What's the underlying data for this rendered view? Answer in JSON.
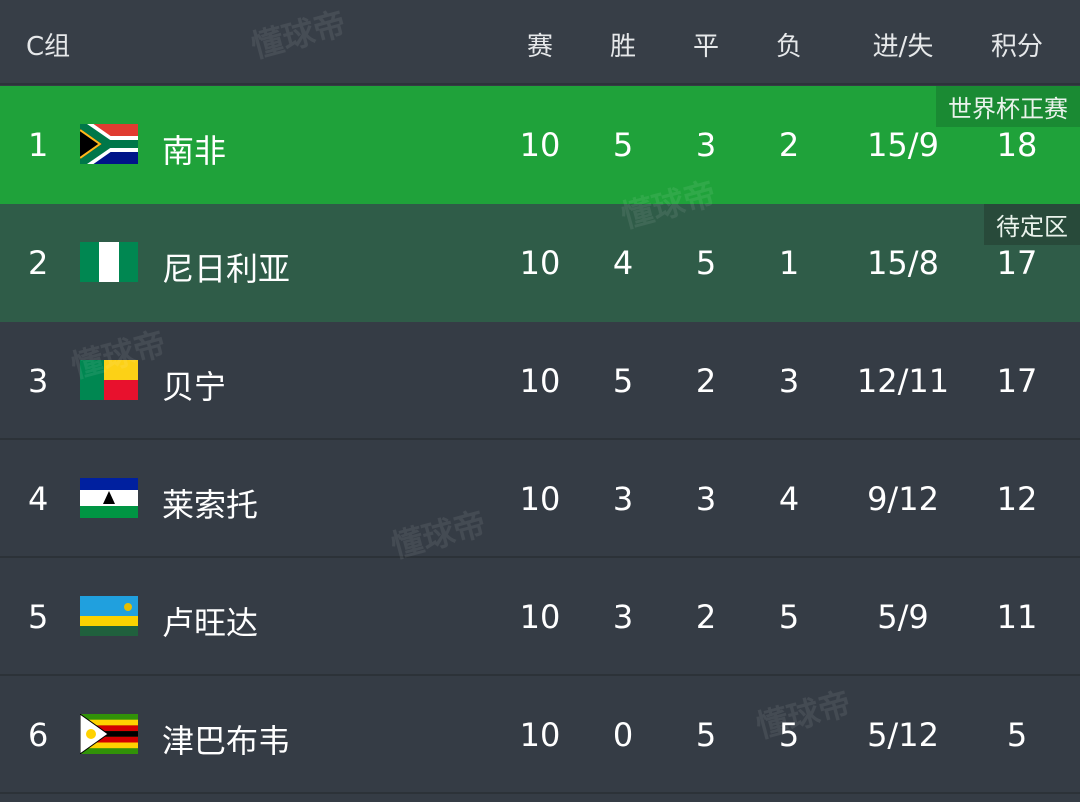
{
  "header": {
    "group": "C组",
    "cols": [
      "赛",
      "胜",
      "平",
      "负",
      "进/失",
      "积分"
    ]
  },
  "watermark": "懂球帝",
  "rows": [
    {
      "rank": "1",
      "team": "南非",
      "flag": "south-africa",
      "p": "10",
      "w": "5",
      "d": "3",
      "l": "2",
      "gd": "15/9",
      "pts": "18",
      "badge": "世界杯正赛",
      "status": "qualified",
      "color": "#1fa23a"
    },
    {
      "rank": "2",
      "team": "尼日利亚",
      "flag": "nigeria",
      "p": "10",
      "w": "4",
      "d": "5",
      "l": "1",
      "gd": "15/8",
      "pts": "17",
      "badge": "待定区",
      "status": "pending",
      "color": "#2f5c48"
    },
    {
      "rank": "3",
      "team": "贝宁",
      "flag": "benin",
      "p": "10",
      "w": "5",
      "d": "2",
      "l": "3",
      "gd": "12/11",
      "pts": "17"
    },
    {
      "rank": "4",
      "team": "莱索托",
      "flag": "lesotho",
      "p": "10",
      "w": "3",
      "d": "3",
      "l": "4",
      "gd": "9/12",
      "pts": "12"
    },
    {
      "rank": "5",
      "team": "卢旺达",
      "flag": "rwanda",
      "p": "10",
      "w": "3",
      "d": "2",
      "l": "5",
      "gd": "5/9",
      "pts": "11"
    },
    {
      "rank": "6",
      "team": "津巴布韦",
      "flag": "zimbabwe",
      "p": "10",
      "w": "0",
      "d": "5",
      "l": "5",
      "gd": "5/12",
      "pts": "5"
    }
  ]
}
